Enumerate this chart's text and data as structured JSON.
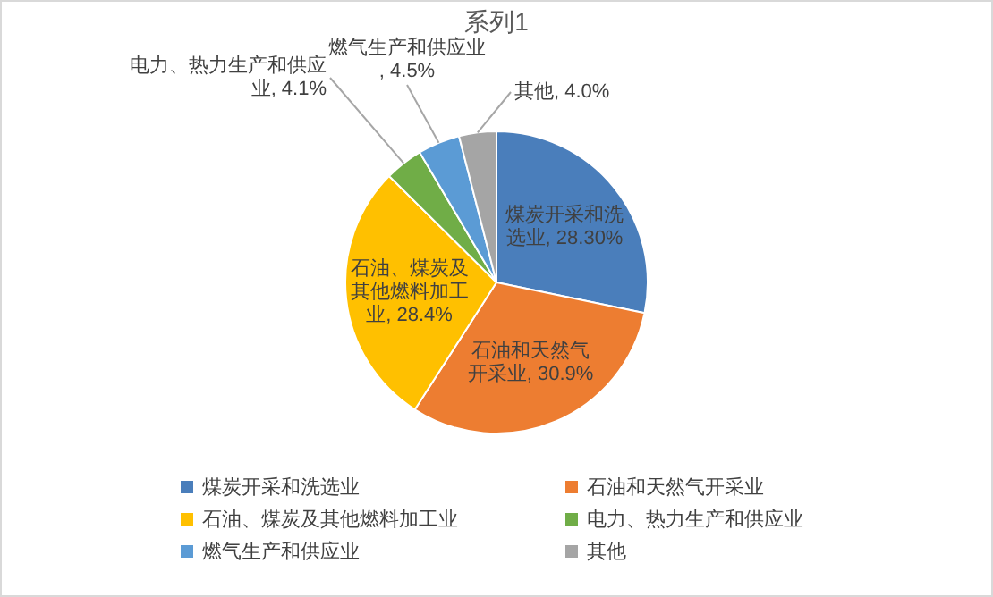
{
  "chart_data": {
    "type": "pie",
    "title": "系列1",
    "categories": [
      "煤炭开采和洗选业",
      "石油和天然气开采业",
      "石油、煤炭及其他燃料加工业",
      "电力、热力生产和供应业",
      "燃气生产和供应业",
      "其他"
    ],
    "values": [
      28.3,
      30.9,
      28.4,
      4.1,
      4.5,
      4.0
    ],
    "colors": [
      "#4a7ebb",
      "#ed7d31",
      "#ffc000",
      "#70ad47",
      "#5b9bd5",
      "#a5a5a5"
    ],
    "value_labels": [
      "煤炭开采和洗选业, 28.30%",
      "石油和天然气开采业, 30.9%",
      "石油、煤炭及其他燃料加工业, 28.4%",
      "电力、热力生产和供应业, 4.1%",
      "燃气生产和供应业, 4.5%",
      "其他, 4.0%"
    ],
    "legend": "bottom"
  }
}
